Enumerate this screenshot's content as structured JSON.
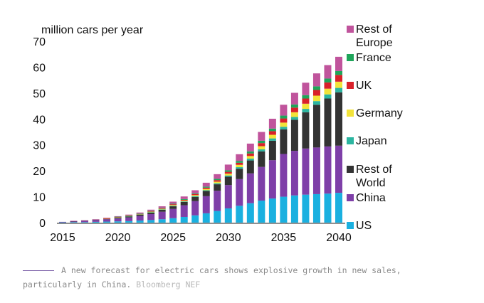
{
  "chart_data": {
    "type": "bar",
    "stacked": true,
    "title": "",
    "ylabel": "million cars per year",
    "xlabel": "",
    "ylim": [
      0,
      70
    ],
    "yticks": [
      0,
      10,
      20,
      30,
      40,
      50,
      60,
      70
    ],
    "xtick_labels": [
      "2015",
      "2020",
      "2025",
      "2030",
      "2035",
      "2040"
    ],
    "grid": false,
    "legend_placement": "right",
    "categories": [
      "2015",
      "2016",
      "2017",
      "2018",
      "2019",
      "2020",
      "2021",
      "2022",
      "2023",
      "2024",
      "2025",
      "2026",
      "2027",
      "2028",
      "2029",
      "2030",
      "2031",
      "2032",
      "2033",
      "2034",
      "2035",
      "2036",
      "2037",
      "2038",
      "2039",
      "2040"
    ],
    "series": [
      {
        "name": "US",
        "color": "#1ab0e0",
        "values": [
          0.1,
          0.2,
          0.2,
          0.3,
          0.4,
          0.5,
          0.6,
          0.8,
          1.0,
          1.3,
          1.7,
          2.2,
          2.8,
          3.6,
          4.5,
          5.5,
          6.5,
          7.5,
          8.5,
          9.3,
          10.0,
          10.5,
          10.8,
          11.0,
          11.2,
          11.5
        ]
      },
      {
        "name": "China",
        "color": "#7e3fa8",
        "values": [
          0.2,
          0.3,
          0.5,
          0.7,
          0.9,
          1.1,
          1.4,
          1.8,
          2.3,
          2.9,
          3.6,
          4.5,
          5.5,
          6.6,
          7.8,
          9.0,
          10.3,
          11.5,
          13.0,
          14.8,
          16.5,
          17.2,
          17.8,
          18.0,
          18.2,
          18.2
        ]
      },
      {
        "name": "Rest of World",
        "color": "#333333",
        "values": [
          0.0,
          0.1,
          0.1,
          0.2,
          0.2,
          0.3,
          0.4,
          0.5,
          0.6,
          0.8,
          1.0,
          1.3,
          1.6,
          2.0,
          2.5,
          3.2,
          4.0,
          5.0,
          6.0,
          7.5,
          9.5,
          12.0,
          14.0,
          16.5,
          18.5,
          20.6
        ]
      },
      {
        "name": "Japan",
        "color": "#2bb5a0",
        "values": [
          0.0,
          0.0,
          0.0,
          0.0,
          0.0,
          0.1,
          0.1,
          0.1,
          0.1,
          0.1,
          0.2,
          0.2,
          0.3,
          0.3,
          0.4,
          0.5,
          0.6,
          0.7,
          0.8,
          0.9,
          1.0,
          1.1,
          1.3,
          1.4,
          1.6,
          1.7
        ]
      },
      {
        "name": "Germany",
        "color": "#f2e33a",
        "values": [
          0.0,
          0.0,
          0.0,
          0.0,
          0.1,
          0.1,
          0.1,
          0.1,
          0.2,
          0.2,
          0.3,
          0.3,
          0.4,
          0.5,
          0.6,
          0.7,
          0.9,
          1.0,
          1.2,
          1.4,
          1.6,
          1.8,
          2.0,
          2.1,
          2.2,
          2.4
        ]
      },
      {
        "name": "UK",
        "color": "#d9202a",
        "values": [
          0.0,
          0.0,
          0.0,
          0.0,
          0.1,
          0.1,
          0.1,
          0.1,
          0.2,
          0.2,
          0.3,
          0.3,
          0.4,
          0.5,
          0.6,
          0.7,
          0.8,
          1.0,
          1.2,
          1.4,
          1.6,
          1.8,
          2.0,
          2.2,
          2.4,
          2.6
        ]
      },
      {
        "name": "France",
        "color": "#1fa55a",
        "values": [
          0.0,
          0.0,
          0.0,
          0.0,
          0.0,
          0.1,
          0.1,
          0.1,
          0.1,
          0.2,
          0.2,
          0.3,
          0.3,
          0.4,
          0.5,
          0.6,
          0.7,
          0.8,
          0.9,
          1.0,
          1.1,
          1.2,
          1.3,
          1.4,
          1.5,
          1.5
        ]
      },
      {
        "name": "Rest of Europe",
        "color": "#c0549c",
        "values": [
          0.0,
          0.1,
          0.1,
          0.1,
          0.2,
          0.2,
          0.3,
          0.4,
          0.5,
          0.6,
          0.8,
          1.0,
          1.2,
          1.5,
          1.8,
          2.2,
          2.6,
          3.0,
          3.4,
          3.8,
          4.2,
          4.5,
          4.8,
          5.0,
          5.2,
          5.5
        ]
      }
    ],
    "legend": [
      {
        "name": "Rest of Europe",
        "lines": [
          "Rest of",
          "Europe"
        ],
        "color": "#c0549c"
      },
      {
        "name": "France",
        "lines": [
          "France"
        ],
        "color": "#1fa55a"
      },
      {
        "name": "UK",
        "lines": [
          "UK"
        ],
        "color": "#d9202a"
      },
      {
        "name": "Germany",
        "lines": [
          "Germany"
        ],
        "color": "#f2e33a"
      },
      {
        "name": "Japan",
        "lines": [
          "Japan"
        ],
        "color": "#2bb5a0"
      },
      {
        "name": "Rest of World",
        "lines": [
          "Rest of",
          "World"
        ],
        "color": "#333333"
      },
      {
        "name": "China",
        "lines": [
          "China"
        ],
        "color": "#7e3fa8"
      },
      {
        "name": "US",
        "lines": [
          "US"
        ],
        "color": "#1ab0e0"
      }
    ]
  },
  "caption": {
    "text": "A new forecast for electric cars shows explosive growth in new sales, particularly in China.",
    "source": "Bloomberg NEF"
  }
}
